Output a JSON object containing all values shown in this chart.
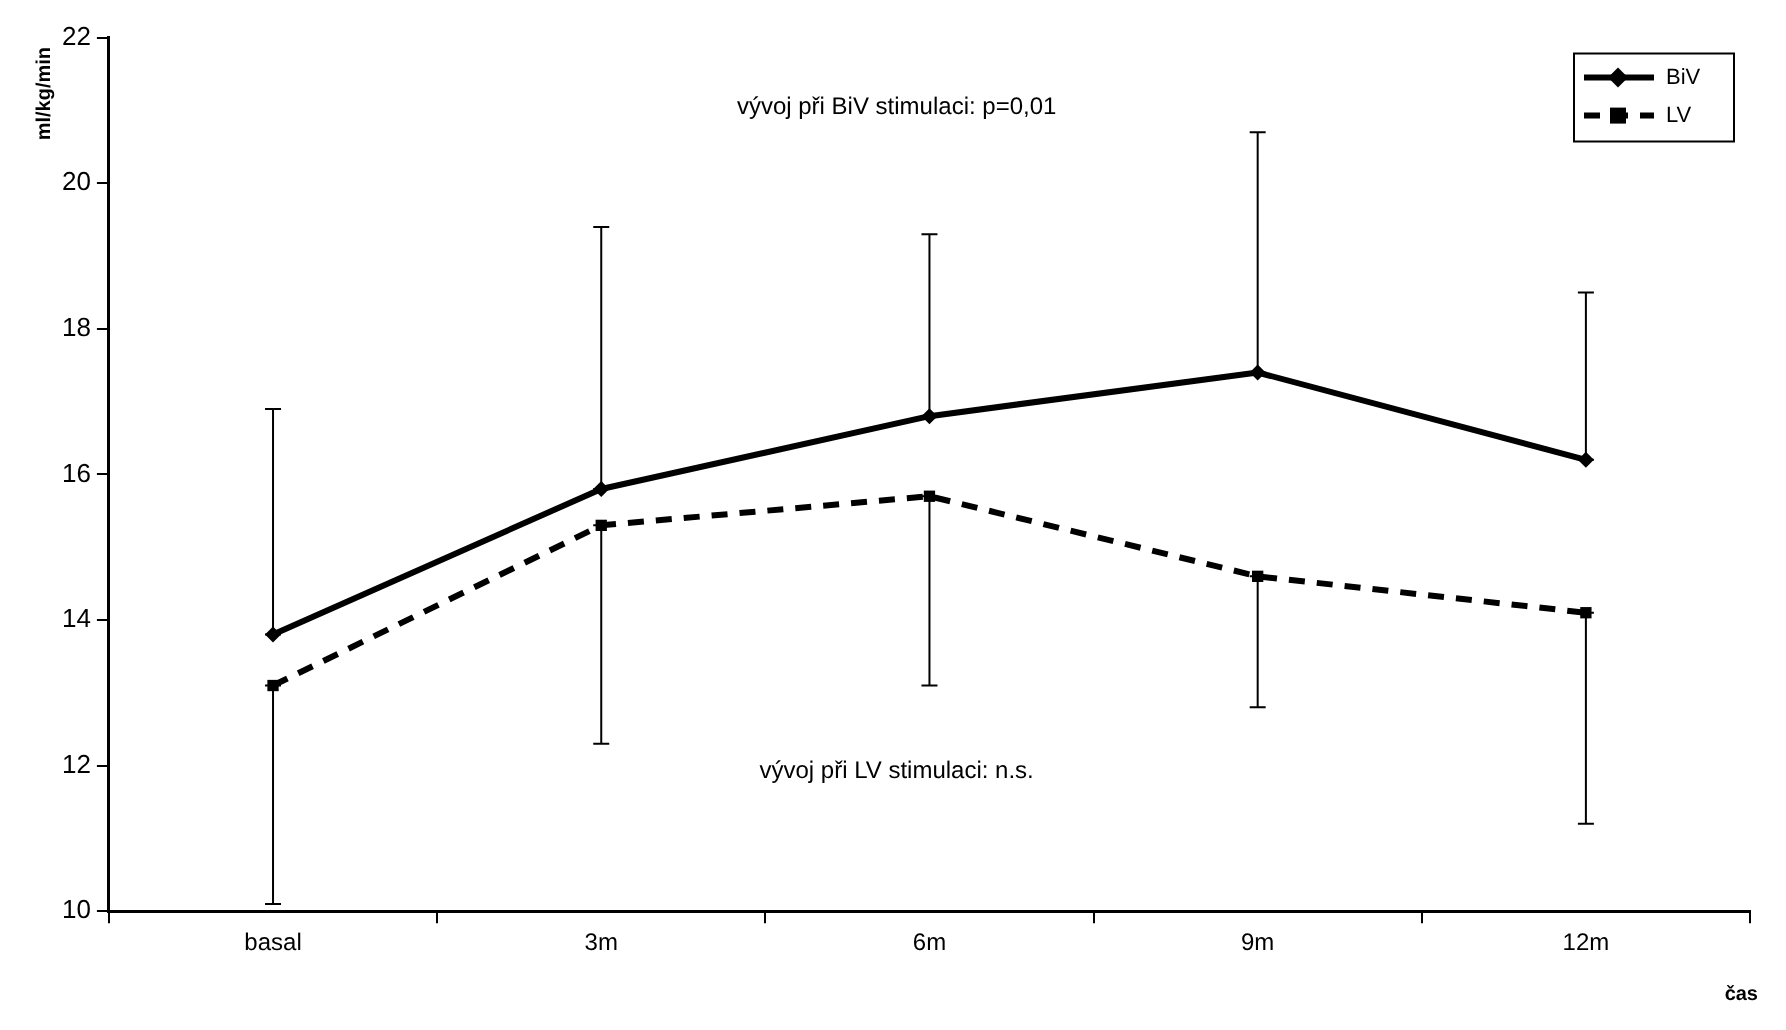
{
  "chart_data": {
    "type": "line",
    "ylabel": "ml/kg/min",
    "xlabel": "čas",
    "categories": [
      "basal",
      "3m",
      "6m",
      "9m",
      "12m"
    ],
    "series": [
      {
        "name": "BiV",
        "color": "#000000",
        "marker": "diamond",
        "line_style": "solid",
        "values": [
          13.8,
          15.8,
          16.8,
          17.4,
          16.2
        ],
        "errors": [
          [
            13.8,
            16.9
          ],
          [
            15.8,
            19.4
          ],
          [
            16.8,
            19.3
          ],
          [
            17.4,
            20.7
          ],
          [
            16.2,
            18.5
          ]
        ]
      },
      {
        "name": "LV",
        "color": "#000000",
        "marker": "square",
        "line_style": "dashed",
        "values": [
          13.1,
          15.3,
          15.7,
          14.6,
          14.1
        ],
        "errors": [
          [
            10.1,
            13.1
          ],
          [
            12.3,
            15.3
          ],
          [
            13.1,
            15.7
          ],
          [
            12.8,
            14.6
          ],
          [
            11.2,
            14.1
          ]
        ]
      }
    ],
    "ylim": [
      10,
      22
    ],
    "yticks": [
      10,
      12,
      14,
      16,
      18,
      20,
      22
    ],
    "grid": false,
    "legend": "top right",
    "annotations": [
      "vývoj při BiV stimulaci: p=0,01",
      "vývoj při LV stimulaci: n.s."
    ]
  }
}
